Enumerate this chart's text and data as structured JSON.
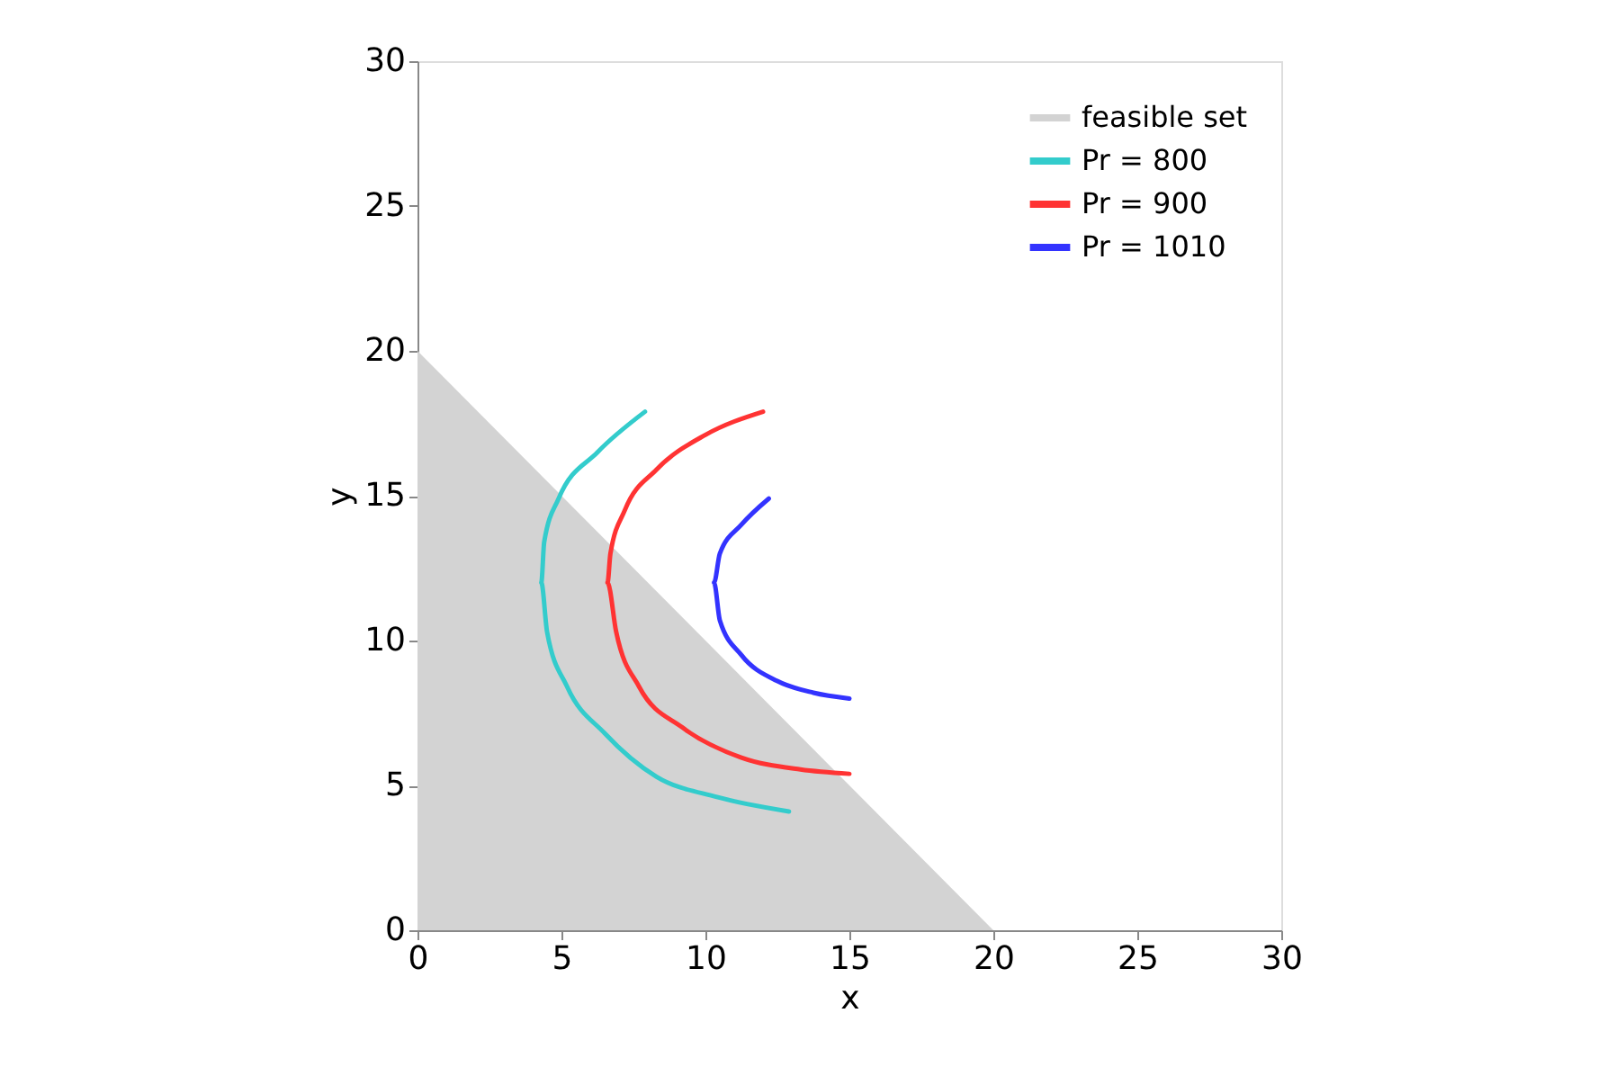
{
  "chart_data": {
    "type": "line",
    "xlabel": "x",
    "ylabel": "y",
    "xlim": [
      0,
      30
    ],
    "ylim": [
      0,
      30
    ],
    "xticks": [
      0,
      5,
      10,
      15,
      20,
      25,
      30
    ],
    "yticks": [
      0,
      5,
      10,
      15,
      20,
      25,
      30
    ],
    "grid": false,
    "legend": "top right",
    "series": [
      {
        "name": "feasible set",
        "type": "area",
        "color": "#d3d3d3",
        "x": [
          0,
          20
        ],
        "values": [
          20,
          0
        ]
      },
      {
        "name": "Pr = 800",
        "color": "#33cccc",
        "x": [
          7.9,
          6.25,
          4.9,
          4.4,
          4.3,
          4.5,
          5.2,
          6.5,
          8.3,
          10.4,
          12.9
        ],
        "values": [
          17.9,
          16.5,
          14.9,
          13.4,
          12.0,
          10.3,
          8.4,
          6.8,
          5.3,
          4.6,
          4.1
        ]
      },
      {
        "name": "Pr = 900",
        "color": "#ff3333",
        "x": [
          12.0,
          10.0,
          8.3,
          7.2,
          6.7,
          6.6,
          6.9,
          7.7,
          9.2,
          11.25,
          13.3,
          15.0
        ],
        "values": [
          17.9,
          17.1,
          15.9,
          14.5,
          13.0,
          12.0,
          10.3,
          8.4,
          7.0,
          5.96,
          5.55,
          5.4
        ]
      },
      {
        "name": "Pr = 1010",
        "color": "#3333ff",
        "x": [
          12.2,
          11.25,
          10.5,
          10.3,
          10.5,
          11.25,
          12.5,
          13.75,
          15.0
        ],
        "values": [
          14.9,
          14.0,
          13.0,
          12.0,
          10.7,
          9.5,
          8.6,
          8.2,
          8.0
        ]
      }
    ]
  }
}
